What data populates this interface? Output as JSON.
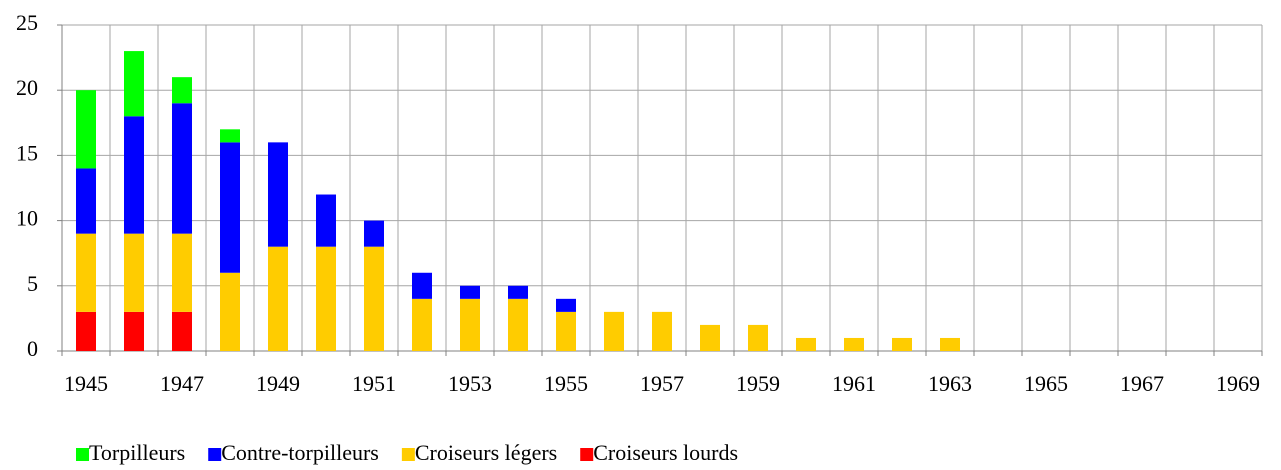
{
  "chart_data": {
    "type": "stacked_bar",
    "categories": [
      "1945",
      null,
      "1947",
      null,
      "1949",
      null,
      "1951",
      null,
      "1953",
      null,
      "1955",
      null,
      "1957",
      null,
      "1959",
      null,
      "1961",
      null,
      "1963",
      null,
      "1965",
      null,
      "1967",
      null,
      "1969"
    ],
    "series": [
      {
        "name": "Torpilleurs",
        "color": "#00ff00",
        "values": [
          6,
          5,
          2,
          1,
          0,
          0,
          0,
          0,
          0,
          0,
          0,
          0,
          0,
          0,
          0,
          0,
          0,
          0,
          0,
          0,
          0,
          0,
          0,
          0,
          0
        ]
      },
      {
        "name": "Contre-torpilleurs",
        "color": "#0000ff",
        "values": [
          5,
          9,
          10,
          10,
          8,
          4,
          2,
          2,
          1,
          1,
          1,
          0,
          0,
          0,
          0,
          0,
          0,
          0,
          0,
          0,
          0,
          0,
          0,
          0,
          0
        ]
      },
      {
        "name": "Croiseurs légers",
        "color": "#ffcc00",
        "values": [
          6,
          6,
          6,
          6,
          8,
          8,
          8,
          4,
          4,
          4,
          3,
          3,
          3,
          2,
          2,
          1,
          1,
          1,
          1,
          0,
          0,
          0,
          0,
          0,
          0
        ]
      },
      {
        "name": "Croiseurs lourds",
        "color": "#ff0000",
        "values": [
          3,
          3,
          3,
          0,
          0,
          0,
          0,
          0,
          0,
          0,
          0,
          0,
          0,
          0,
          0,
          0,
          0,
          0,
          0,
          0,
          0,
          0,
          0,
          0,
          0
        ]
      }
    ],
    "ylim": [
      0,
      25
    ],
    "yticks": [
      0,
      5,
      10,
      15,
      20,
      25
    ],
    "grid": true,
    "legend": "bottom"
  }
}
